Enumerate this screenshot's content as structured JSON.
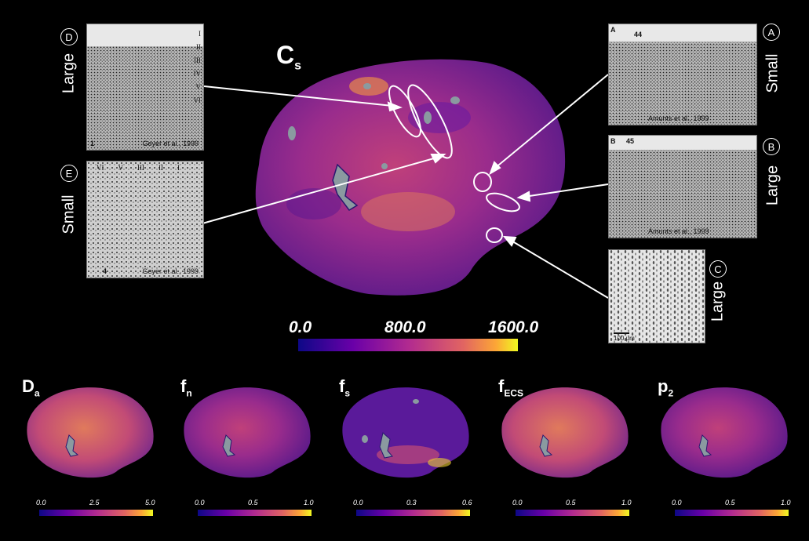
{
  "main_map": {
    "title": "C",
    "title_sub": "s",
    "colorbar": {
      "min": "0.0",
      "mid": "800.0",
      "max": "1600.0"
    }
  },
  "histology": {
    "D": {
      "letter": "D",
      "size": "Large",
      "caption": "Geyer et al., 1999",
      "num": "1",
      "layers": [
        "I",
        "II",
        "III",
        "IV",
        "V",
        "VI"
      ]
    },
    "E": {
      "letter": "E",
      "size": "Small",
      "caption": "Geyer et al., 1999",
      "num": "4",
      "layers": [
        "VI",
        "V",
        "III",
        "II",
        "I"
      ]
    },
    "A": {
      "letter": "A",
      "size": "Small",
      "caption": "Amunts et al., 1999",
      "num": "44",
      "corner": "A"
    },
    "B": {
      "letter": "B",
      "size": "Large",
      "caption": "Amunts et al., 1999",
      "num": "45",
      "corner": "B"
    },
    "C": {
      "letter": "C",
      "size": "Large",
      "caption": "100 μm"
    }
  },
  "small_maps": [
    {
      "title": "D",
      "sub": "a",
      "min": "0.0",
      "mid": "2.5",
      "max": "5.0"
    },
    {
      "title": "f",
      "sub": "n",
      "min": "0.0",
      "mid": "0.5",
      "max": "1.0"
    },
    {
      "title": "f",
      "sub": "s",
      "min": "0.0",
      "mid": "0.3",
      "max": "0.6"
    },
    {
      "title": "f",
      "sub": "ECS",
      "min": "0.0",
      "mid": "0.5",
      "max": "1.0"
    },
    {
      "title": "p",
      "sub": "2",
      "min": "0.0",
      "mid": "0.5",
      "max": "1.0"
    }
  ],
  "colors": {
    "plasma_start": "#0d0887",
    "plasma_mid": "#cc4778",
    "plasma_end": "#f0f921",
    "background": "#000000"
  }
}
